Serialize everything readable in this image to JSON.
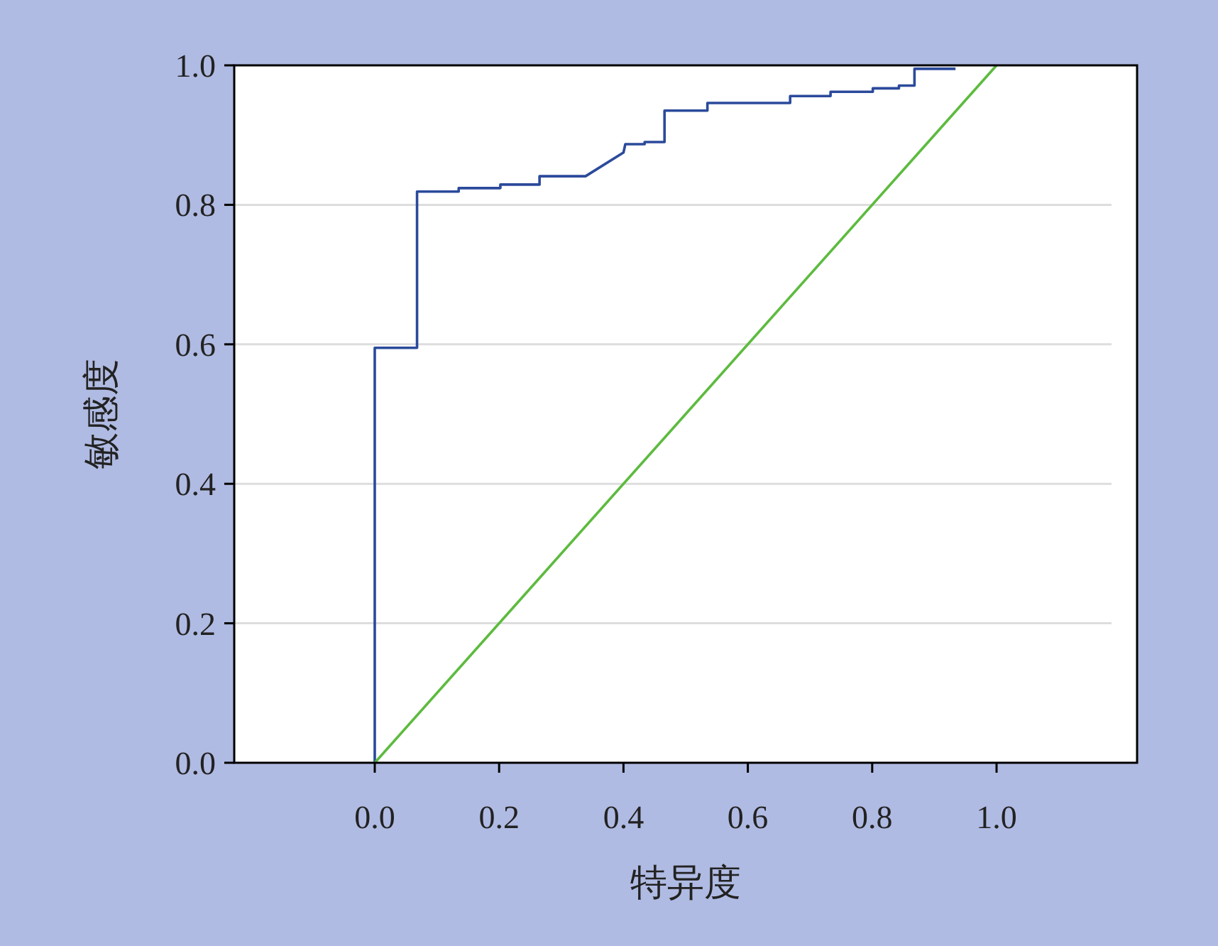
{
  "chart_data": {
    "type": "line",
    "xlabel": "特异度",
    "ylabel": "敏感度",
    "xlim": [
      -0.226,
      1.226
    ],
    "ylim": [
      0,
      1
    ],
    "xticks": [
      {
        "value": 0,
        "label": "0.0"
      },
      {
        "value": 0.2,
        "label": "0.2"
      },
      {
        "value": 0.4,
        "label": "0.4"
      },
      {
        "value": 0.6,
        "label": "0.6"
      },
      {
        "value": 0.8,
        "label": "0.8"
      },
      {
        "value": 1,
        "label": "1.0"
      }
    ],
    "yticks": [
      {
        "value": 0,
        "label": "0.0"
      },
      {
        "value": 0.2,
        "label": "0.2"
      },
      {
        "value": 0.4,
        "label": "0.4"
      },
      {
        "value": 0.6,
        "label": "0.6"
      },
      {
        "value": 0.8,
        "label": "0.8"
      },
      {
        "value": 1,
        "label": "1.0"
      }
    ],
    "grid": "y",
    "series": [
      {
        "color": "#2b4a9b",
        "x": [
          0,
          0,
          0.068,
          0.068,
          0.135,
          0.135,
          0.202,
          0.202,
          0.265,
          0.265,
          0.339,
          0.4,
          0.403,
          0.434,
          0.434,
          0.466,
          0.466,
          0.535,
          0.535,
          0.668,
          0.668,
          0.733,
          0.733,
          0.801,
          0.801,
          0.843,
          0.843,
          0.868,
          0.868,
          0.934
        ],
        "values": [
          0,
          0.595,
          0.595,
          0.819,
          0.819,
          0.824,
          0.824,
          0.829,
          0.829,
          0.841,
          0.841,
          0.875,
          0.887,
          0.887,
          0.89,
          0.89,
          0.935,
          0.935,
          0.946,
          0.946,
          0.956,
          0.956,
          0.962,
          0.962,
          0.967,
          0.967,
          0.971,
          0.971,
          0.995,
          0.995
        ]
      },
      {
        "color": "#5dbb3f",
        "x": [
          0,
          1
        ],
        "values": [
          0,
          1
        ]
      }
    ]
  }
}
